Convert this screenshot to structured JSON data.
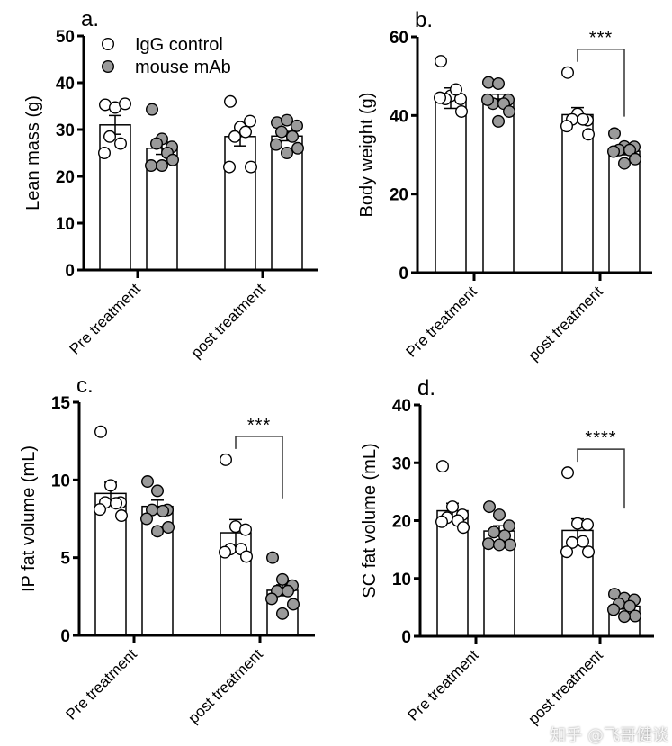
{
  "watermark": "知乎 @飞哥健谈",
  "legend": {
    "items": [
      {
        "label": "IgG control",
        "fill": "#ffffff"
      },
      {
        "label": "mouse mAb",
        "fill": "#9a9a9a"
      }
    ]
  },
  "chart_data": [
    {
      "panel": "a.",
      "type": "bar",
      "ylabel": "Lean mass (g)",
      "ylim": [
        0,
        50
      ],
      "yticks": [
        0,
        10,
        20,
        30,
        40,
        50
      ],
      "categories": [
        "Pre treatment",
        "post treatment"
      ],
      "series": [
        {
          "name": "IgG control",
          "fill": "#ffffff",
          "means": [
            31,
            28.5
          ],
          "sem": [
            2.0,
            2.0
          ],
          "points": [
            [
              35.3,
              34.7,
              35.5,
              28.5,
              27,
              25
            ],
            [
              36,
              30.5,
              31.8,
              28.5,
              29.5,
              22,
              22
            ]
          ]
        },
        {
          "name": "mouse mAb",
          "fill": "#9a9a9a",
          "means": [
            26,
            28.6
          ],
          "sem": [
            1.3,
            1.0
          ],
          "points": [
            [
              34.3,
              28,
              26.3,
              27,
              25,
              22.3,
              23.5,
              22.3
            ],
            [
              31.5,
              32,
              30.8,
              29.5,
              28.5,
              26.8,
              26,
              25
            ]
          ]
        }
      ],
      "significance": null
    },
    {
      "panel": "b.",
      "type": "bar",
      "ylabel": "Body weight (g)",
      "ylim": [
        0,
        60
      ],
      "yticks": [
        0,
        20,
        40,
        60
      ],
      "categories": [
        "Pre treatment",
        "post treatment"
      ],
      "series": [
        {
          "name": "IgG control",
          "fill": "#ffffff",
          "means": [
            44.4,
            40.2
          ],
          "sem": [
            2.6,
            1.8
          ],
          "points": [
            [
              53.8,
              45,
              44.2,
              44.2,
              46.6,
              44.5,
              41
            ],
            [
              50.9,
              40.4,
              38.8,
              39,
              39,
              37.3,
              35.2
            ]
          ]
        },
        {
          "name": "mouse mAb",
          "fill": "#9a9a9a",
          "means": [
            44.2,
            30.9
          ],
          "sem": [
            1.2,
            0.9
          ],
          "points": [
            [
              48.4,
              48.1,
              44,
              43,
              43,
              44,
              41,
              38.5
            ],
            [
              35.4,
              32.1,
              32,
              31.2,
              31.2,
              30.8,
              28.9,
              27.8
            ]
          ]
        }
      ],
      "significance": {
        "group": 1,
        "label": "***"
      }
    },
    {
      "panel": "c.",
      "type": "bar",
      "ylabel": "IP fat volume (mL)",
      "ylim": [
        0,
        15
      ],
      "yticks": [
        0,
        5,
        10,
        15
      ],
      "categories": [
        "Pre treatment",
        "post treatment"
      ],
      "series": [
        {
          "name": "IgG control",
          "fill": "#ffffff",
          "means": [
            9.13,
            6.6
          ],
          "sem": [
            0.72,
            0.85
          ],
          "points": [
            [
              13.1,
              9.65,
              8.55,
              8.55,
              8.5,
              8.1,
              7.7
            ],
            [
              11.3,
              7.0,
              6.8,
              5.55,
              5.55,
              5.35,
              5.07
            ]
          ]
        },
        {
          "name": "mouse mAb",
          "fill": "#9a9a9a",
          "means": [
            8.3,
            2.9
          ],
          "sem": [
            0.4,
            0.35
          ],
          "points": [
            [
              9.9,
              9.3,
              8.07,
              8.07,
              8.0,
              7.5,
              6.95,
              6.7
            ],
            [
              5.0,
              3.6,
              3.2,
              2.85,
              2.85,
              2.35,
              2.0,
              1.4
            ]
          ]
        }
      ],
      "significance": {
        "group": 1,
        "label": "***"
      }
    },
    {
      "panel": "d.",
      "type": "bar",
      "ylabel": "SC fat volume (mL)",
      "ylim": [
        0,
        40
      ],
      "yticks": [
        0,
        10,
        20,
        30,
        40
      ],
      "categories": [
        "Pre treatment",
        "post treatment"
      ],
      "series": [
        {
          "name": "IgG control",
          "fill": "#ffffff",
          "means": [
            21.7,
            18.3
          ],
          "sem": [
            1.3,
            2.0
          ],
          "points": [
            [
              29.4,
              22.4,
              21,
              20.5,
              20,
              19.8,
              18.8
            ],
            [
              28.3,
              19.5,
              19.3,
              16.2,
              16.4,
              14.6,
              14.6
            ]
          ]
        },
        {
          "name": "mouse mAb",
          "fill": "#9a9a9a",
          "means": [
            18.2,
            5.2
          ],
          "sem": [
            0.9,
            0.5
          ],
          "points": [
            [
              22.4,
              21,
              19.1,
              18,
              17.4,
              16,
              15.8,
              15.8
            ],
            [
              7.3,
              6.6,
              6.3,
              5.6,
              5.2,
              4.6,
              3.5,
              3.4
            ]
          ]
        }
      ],
      "significance": {
        "group": 1,
        "label": "****"
      }
    }
  ]
}
